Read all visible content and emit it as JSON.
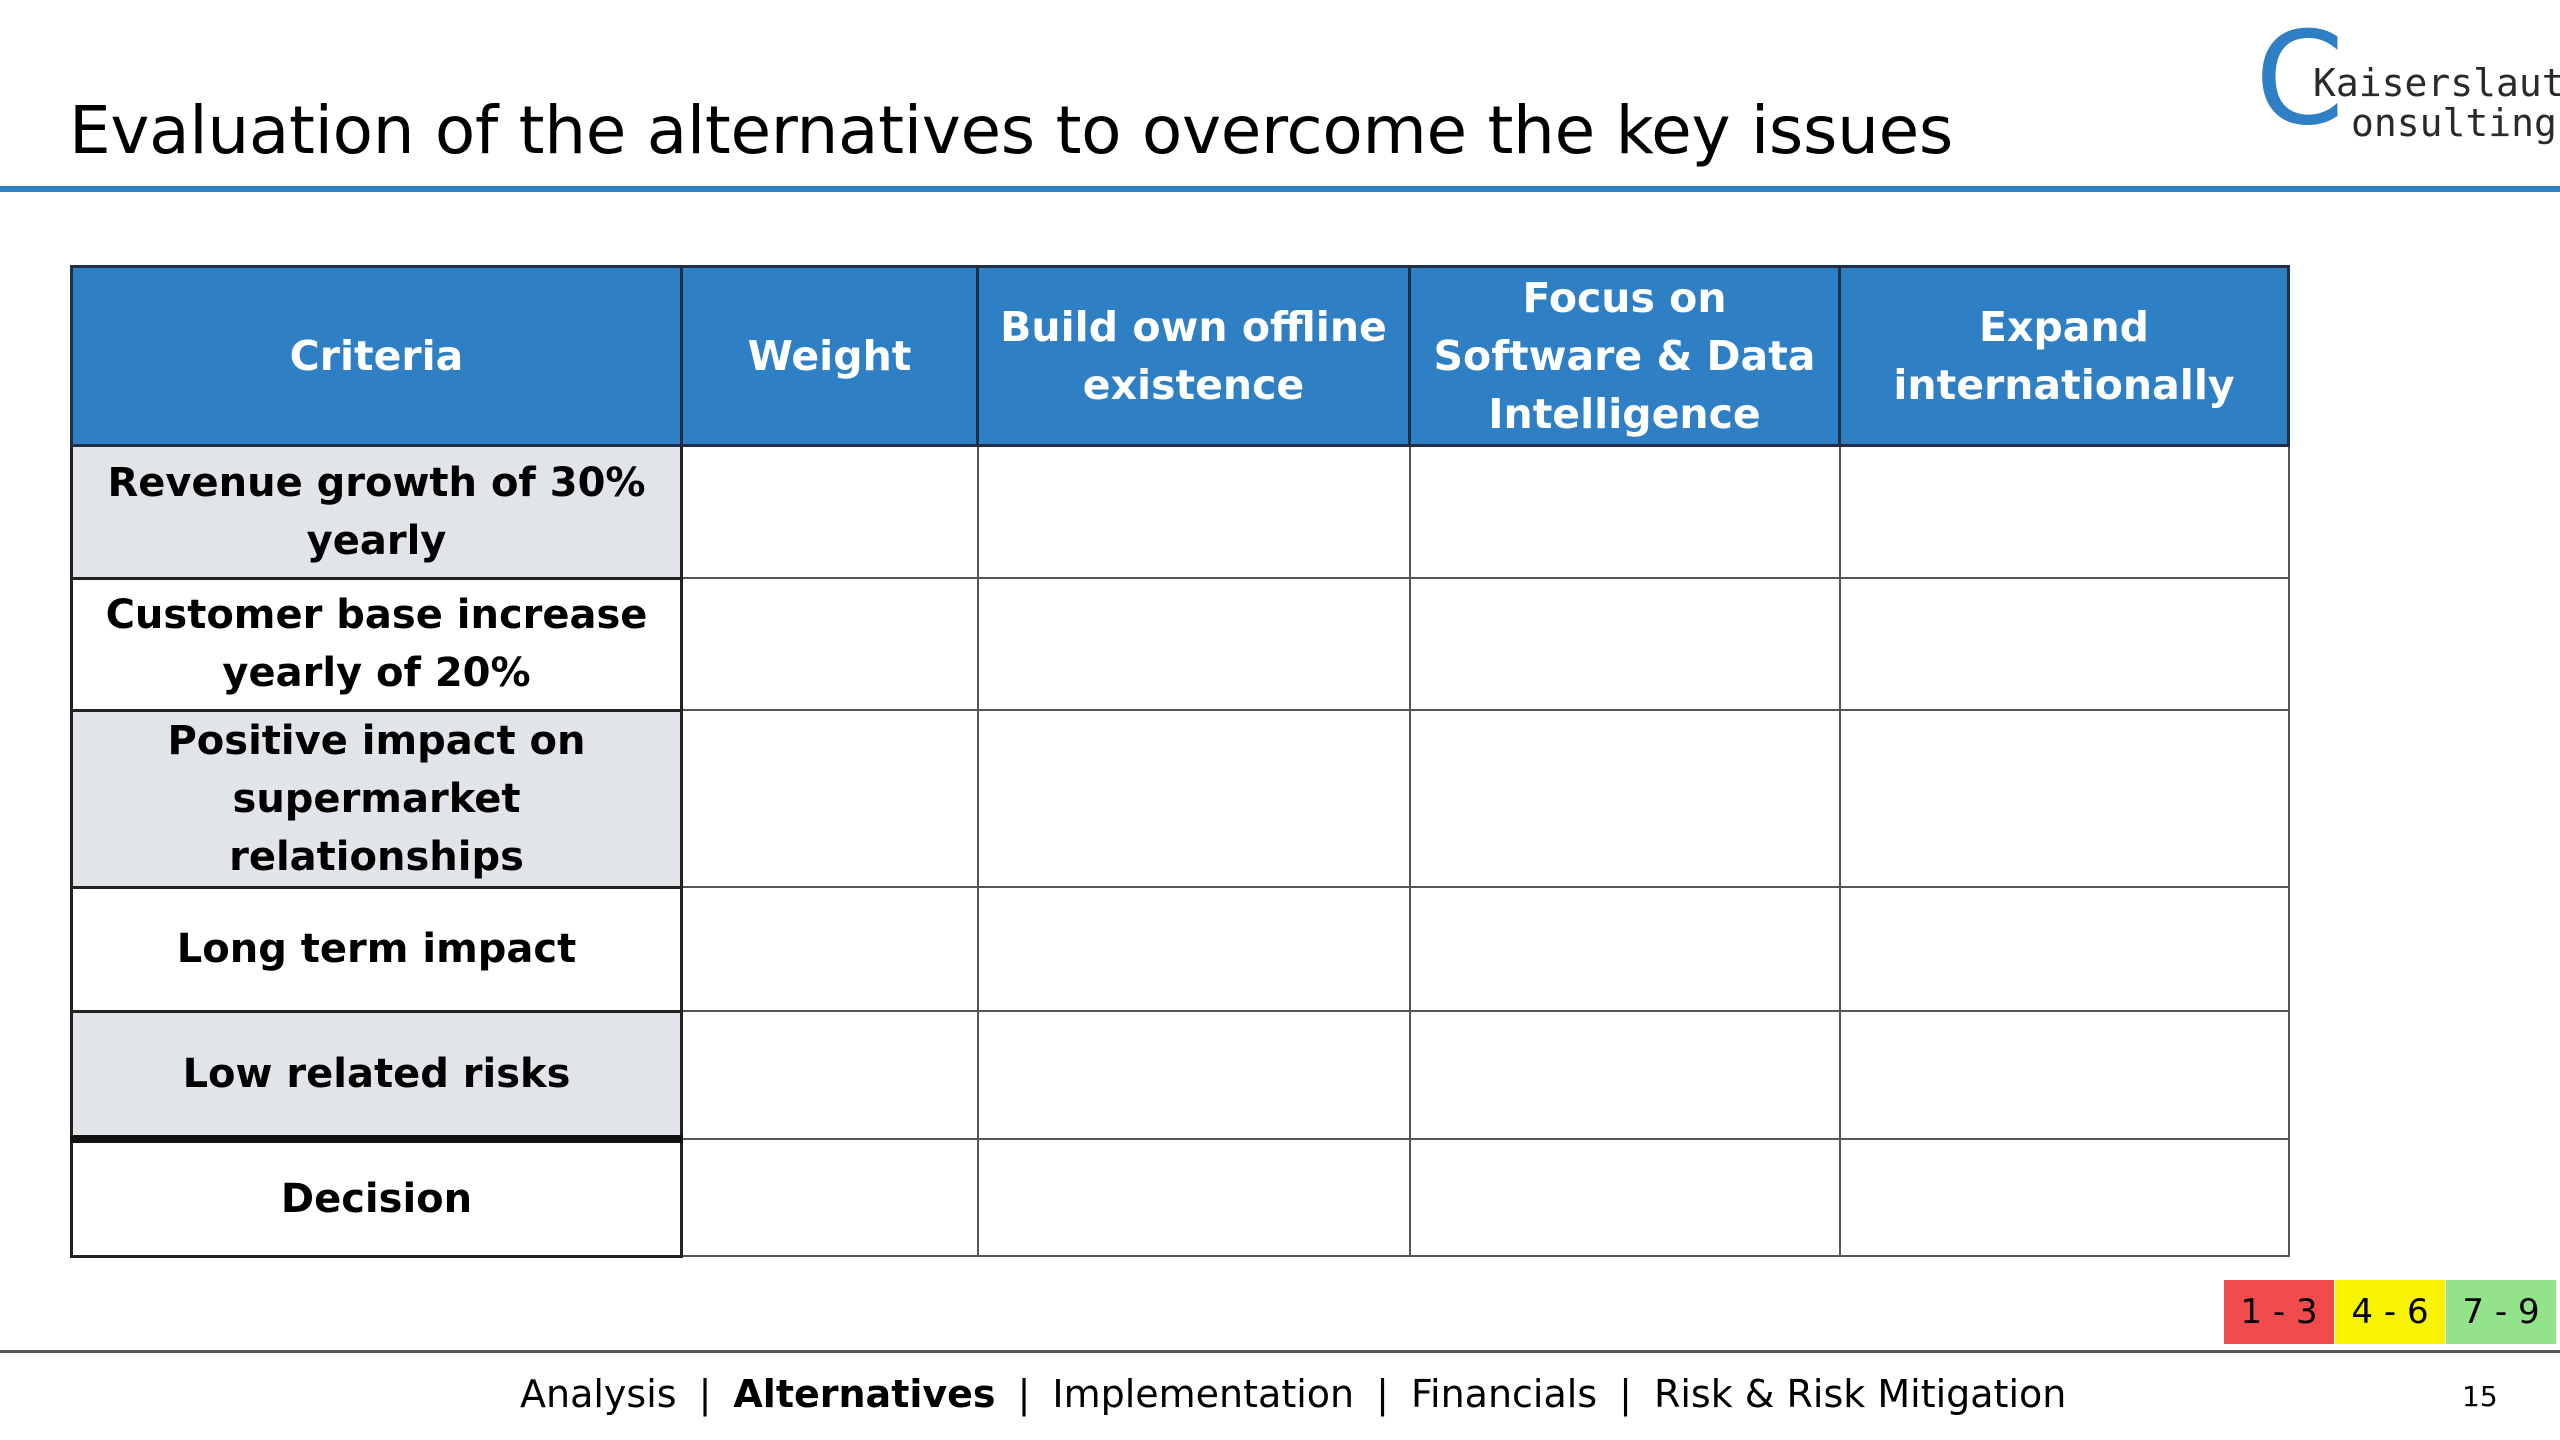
{
  "slide": {
    "title": "Evaluation of the alternatives to overcome the key issues",
    "page_number": "15"
  },
  "logo": {
    "letter": "C",
    "line1": "Kaiserslautern",
    "line2": "onsulting",
    "color": "#2e7fc4"
  },
  "table": {
    "headers": [
      "Criteria",
      "Weight",
      "Build own offline existence",
      "Focus on Software & Data Intelligence",
      "Expand internationally"
    ],
    "criteria": [
      "Revenue growth of 30% yearly",
      "Customer base increase yearly of 20%",
      "Positive impact on supermarket relationships",
      "Long term impact",
      "Low related risks",
      "Decision"
    ]
  },
  "legend": [
    "1 - 3",
    "4 - 6",
    "7 - 9"
  ],
  "footer": {
    "nav": [
      "Analysis",
      "Alternatives",
      "Implementation",
      "Financials",
      "Risk & Risk Mitigation"
    ],
    "active": "Alternatives",
    "separator": "|"
  },
  "colors": {
    "accent": "#2e7fc4",
    "legend_red": "#f24b4b",
    "legend_yellow": "#f8f300",
    "legend_green": "#93e38a",
    "criteria_gray": "#e1e4e8"
  }
}
